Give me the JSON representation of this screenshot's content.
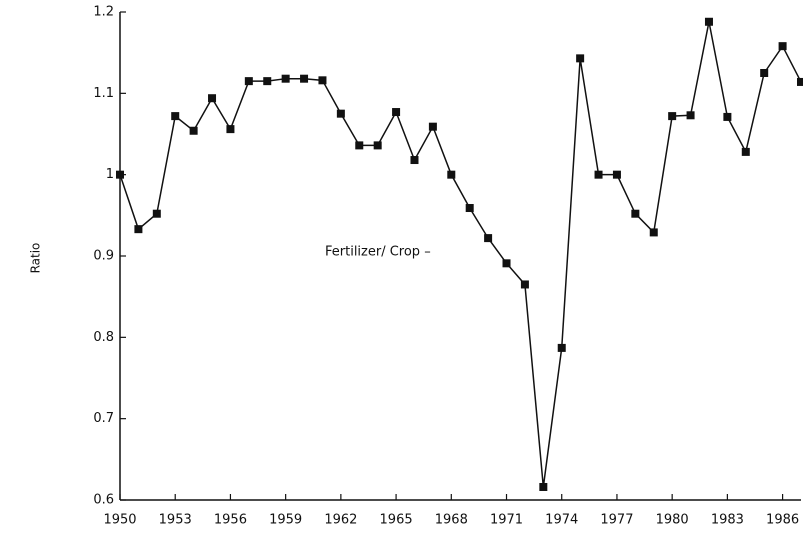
{
  "chart_data": {
    "type": "line",
    "y_label": "Ratio",
    "annotation": "Fertilizer/ Crop –",
    "x": [
      1950,
      1951,
      1952,
      1953,
      1954,
      1955,
      1956,
      1957,
      1958,
      1959,
      1960,
      1961,
      1962,
      1963,
      1964,
      1965,
      1966,
      1967,
      1968,
      1969,
      1970,
      1971,
      1972,
      1973,
      1974,
      1975,
      1976,
      1977,
      1978,
      1979,
      1980,
      1981,
      1982,
      1983,
      1984,
      1985,
      1986,
      1987
    ],
    "series": [
      {
        "name": "Fertilizer/ Crop",
        "color": "#111111",
        "values": [
          1.0,
          0.933,
          0.952,
          1.072,
          1.054,
          1.094,
          1.056,
          1.115,
          1.115,
          1.118,
          1.118,
          1.116,
          1.075,
          1.036,
          1.036,
          1.077,
          1.018,
          1.059,
          1.0,
          0.959,
          0.922,
          0.891,
          0.865,
          0.616,
          0.787,
          1.143,
          1.0,
          1.0,
          0.952,
          0.929,
          1.072,
          1.073,
          1.188,
          1.071,
          1.028,
          1.125,
          1.158,
          1.114
        ]
      }
    ],
    "xlim": [
      1950,
      1987
    ],
    "ylim": [
      0.6,
      1.2
    ],
    "xticks": [
      1950,
      1953,
      1956,
      1959,
      1962,
      1965,
      1968,
      1971,
      1974,
      1977,
      1980,
      1983,
      1986
    ],
    "yticks": [
      0.6,
      0.7,
      0.8,
      0.9,
      1,
      1.1,
      1.2
    ]
  }
}
